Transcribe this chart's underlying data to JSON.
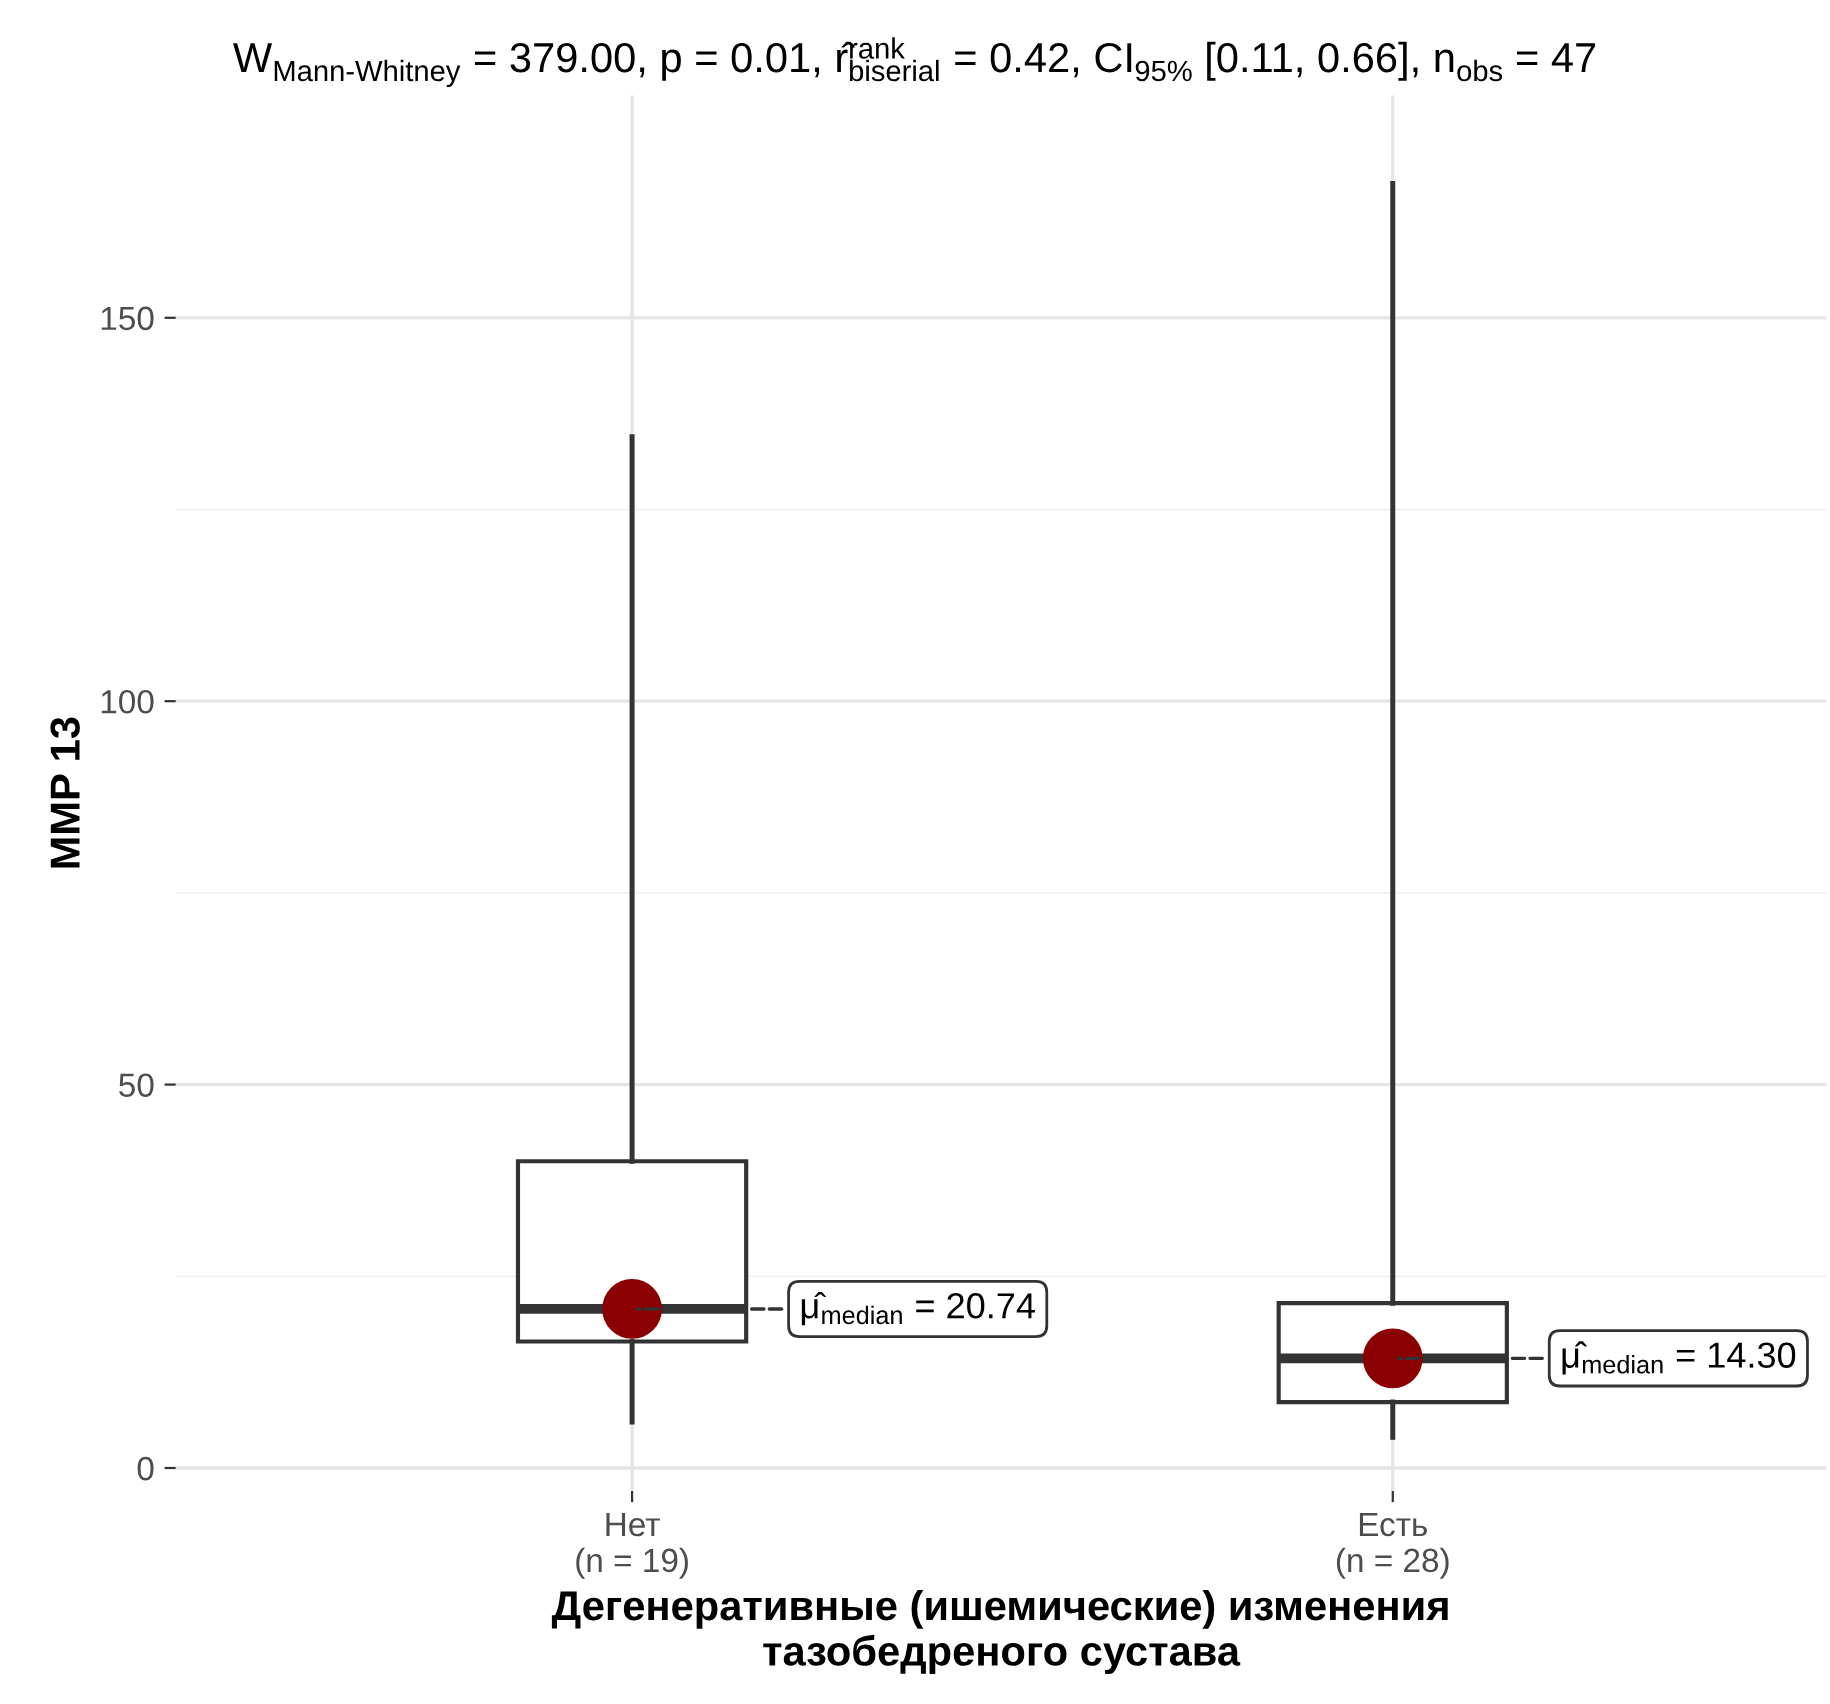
{
  "chart_data": {
    "type": "box",
    "title": "W$_{Mann-Whitney}$ = 379.00, p = 0.01, r̂$^{rank}$$_{biserial}$ = 0.42, CI$_{95%}$ [0.11, 0.66], n$_{obs}$ = 47",
    "xlabel": "Дегенеративные (ишемические) изменения\nтазобедреного сустава",
    "ylabel": "MMP 13",
    "categories": [
      "Нет\n(n = 19)",
      "Есть\n(n = 28)"
    ],
    "boxes": [
      {
        "low": 6,
        "q1": 16.5,
        "median": 20.74,
        "q3": 40,
        "high": 134.5
      },
      {
        "low": 4,
        "q1": 8.6,
        "median": 14.3,
        "q3": 21.5,
        "high": 167.5
      }
    ],
    "series": [
      {
        "type": "scatter",
        "color": "#8b0000",
        "x": [
          "Нет\n(n = 19)",
          "Есть\n(n = 28)"
        ],
        "values": [
          20.74,
          14.3
        ]
      }
    ],
    "annotations": [
      "μ̂$_{median}$ = 20.74",
      "μ̂$_{median}$ = 14.30"
    ],
    "ylim": [
      -3,
      179
    ],
    "yticks": [
      0,
      50,
      100,
      150
    ],
    "grid": true,
    "legend": false
  }
}
